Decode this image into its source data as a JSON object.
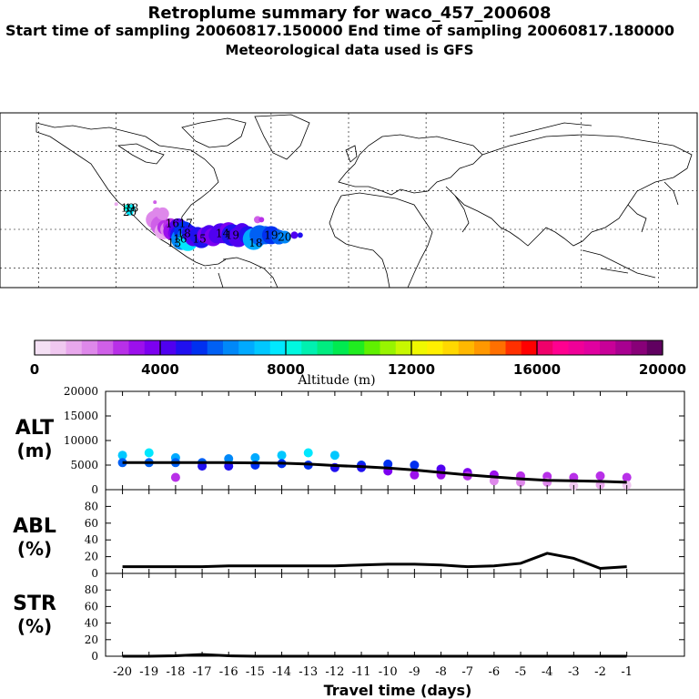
{
  "header": {
    "title": "Retroplume summary for waco_457_200608",
    "sampling_line": "Start time of sampling 20060817.150000     End time of sampling 20060817.180000",
    "met_line": "Meteorological data used is GFS"
  },
  "colorbar": {
    "label": "Altitude (m)",
    "ticks": [
      "0",
      "4000",
      "8000",
      "12000",
      "16000",
      "20000"
    ],
    "colors": [
      "#f4e0f4",
      "#f0c8f0",
      "#e8a8ec",
      "#de88ea",
      "#cf60e8",
      "#b830e8",
      "#9c10ec",
      "#7c00f0",
      "#5000f0",
      "#2010f0",
      "#0030f0",
      "#0060f4",
      "#0088f8",
      "#00aaff",
      "#00c8ff",
      "#00e8ff",
      "#00f8e0",
      "#00f0b0",
      "#00ec80",
      "#00ea50",
      "#20ec20",
      "#60f000",
      "#98f400",
      "#c8f800",
      "#f0f800",
      "#fff000",
      "#ffd800",
      "#ffb800",
      "#ff9800",
      "#ff7000",
      "#ff3000",
      "#ff0000",
      "#f0006a",
      "#ff0090",
      "#f00098",
      "#e000a0",
      "#c80098",
      "#a80090",
      "#880078",
      "#600060"
    ]
  },
  "map_labels": [
    {
      "text": "19",
      "lon": -114,
      "lat": 31
    },
    {
      "text": "18",
      "lon": -112,
      "lat": 31
    },
    {
      "text": "20",
      "lon": -113,
      "lat": 29
    },
    {
      "text": "16",
      "lon": -91,
      "lat": 23
    },
    {
      "text": "17",
      "lon": -84,
      "lat": 23
    },
    {
      "text": "18",
      "lon": -85,
      "lat": 18
    },
    {
      "text": "16",
      "lon": -87,
      "lat": 15
    },
    {
      "text": "15",
      "lon": -77,
      "lat": 15
    },
    {
      "text": "14",
      "lon": -65,
      "lat": 18
    },
    {
      "text": "13",
      "lon": -90,
      "lat": 13
    },
    {
      "text": "19",
      "lon": -60,
      "lat": 17
    },
    {
      "text": "18",
      "lon": -48,
      "lat": 13
    },
    {
      "text": "19",
      "lon": -40,
      "lat": 17
    },
    {
      "text": "20",
      "lon": -33,
      "lat": 16
    }
  ],
  "chart_data": [
    {
      "type": "scatter",
      "panel": "ALT",
      "ylabel": "ALT (m)",
      "ylim": [
        0,
        20000
      ],
      "yticks": [
        "20000",
        "15000",
        "10000",
        "5000",
        "0"
      ],
      "line": {
        "x": [
          -20,
          -18,
          -16,
          -14,
          -13,
          -12,
          -11,
          -10,
          -9,
          -8,
          -7,
          -6,
          -5,
          -4,
          -3,
          -2,
          -1
        ],
        "y": [
          5500,
          5500,
          5500,
          5400,
          5200,
          4900,
          4700,
          4400,
          4000,
          3500,
          3000,
          2600,
          2200,
          1900,
          1800,
          1700,
          1500
        ]
      },
      "points": [
        {
          "x": -20,
          "y": 7000
        },
        {
          "x": -20,
          "y": 5500
        },
        {
          "x": -19,
          "y": 7500
        },
        {
          "x": -19,
          "y": 5500
        },
        {
          "x": -18,
          "y": 6500
        },
        {
          "x": -18,
          "y": 5500
        },
        {
          "x": -18,
          "y": 2500
        },
        {
          "x": -17,
          "y": 5500
        },
        {
          "x": -17,
          "y": 4800
        },
        {
          "x": -16,
          "y": 6300
        },
        {
          "x": -16,
          "y": 4800
        },
        {
          "x": -15,
          "y": 6500
        },
        {
          "x": -15,
          "y": 5000
        },
        {
          "x": -14,
          "y": 7000
        },
        {
          "x": -14,
          "y": 5300
        },
        {
          "x": -13,
          "y": 7500
        },
        {
          "x": -13,
          "y": 5000
        },
        {
          "x": -12,
          "y": 7000
        },
        {
          "x": -12,
          "y": 4500
        },
        {
          "x": -11,
          "y": 5000
        },
        {
          "x": -11,
          "y": 4500
        },
        {
          "x": -10,
          "y": 5200
        },
        {
          "x": -10,
          "y": 3800
        },
        {
          "x": -9,
          "y": 5000
        },
        {
          "x": -9,
          "y": 3000
        },
        {
          "x": -8,
          "y": 4200
        },
        {
          "x": -8,
          "y": 3000
        },
        {
          "x": -7,
          "y": 3500
        },
        {
          "x": -7,
          "y": 2800
        },
        {
          "x": -6,
          "y": 3000
        },
        {
          "x": -6,
          "y": 1800
        },
        {
          "x": -5,
          "y": 2800
        },
        {
          "x": -5,
          "y": 1500
        },
        {
          "x": -4,
          "y": 2700
        },
        {
          "x": -4,
          "y": 1500
        },
        {
          "x": -3,
          "y": 2500
        },
        {
          "x": -3,
          "y": 800
        },
        {
          "x": -2,
          "y": 2800
        },
        {
          "x": -2,
          "y": 1000
        },
        {
          "x": -1,
          "y": 2500
        },
        {
          "x": -1,
          "y": 900
        }
      ]
    },
    {
      "type": "line",
      "panel": "ABL",
      "ylabel": "ABL (%)",
      "ylim": [
        0,
        100
      ],
      "yticks": [
        "80",
        "60",
        "40",
        "20",
        "0"
      ],
      "x": [
        -20,
        -19,
        -18,
        -17,
        -16,
        -15,
        -14,
        -13,
        -12,
        -11,
        -10,
        -9,
        -8,
        -7,
        -6,
        -5,
        -4,
        -3,
        -2,
        -1
      ],
      "y": [
        8,
        8,
        8,
        8,
        9,
        9,
        9,
        9,
        9,
        10,
        11,
        11,
        10,
        8,
        9,
        12,
        24,
        18,
        6,
        8
      ]
    },
    {
      "type": "line",
      "panel": "STR",
      "ylabel": "STR (%)",
      "ylim": [
        0,
        100
      ],
      "yticks": [
        "80",
        "60",
        "40",
        "20",
        "0"
      ],
      "x": [
        -20,
        -19,
        -18,
        -17,
        -16,
        -15,
        -14,
        -13,
        -12,
        -11,
        -10,
        -9,
        -8,
        -7,
        -6,
        -5,
        -4,
        -3,
        -2,
        -1
      ],
      "y": [
        0,
        0,
        0.5,
        2,
        0.5,
        0,
        0,
        0,
        0,
        0,
        0,
        0,
        0,
        0,
        0,
        0,
        0,
        0,
        0,
        0
      ]
    }
  ],
  "panel_labels": {
    "alt_1": "ALT",
    "alt_2": "(m)",
    "abl_1": "ABL",
    "abl_2": "(%)",
    "str_1": "STR",
    "str_2": "(%)"
  },
  "xaxis": {
    "label": "Travel time (days)",
    "ticks": [
      "-20",
      "-19",
      "-18",
      "-17",
      "-16",
      "-15",
      "-14",
      "-13",
      "-12",
      "-11",
      "-10",
      "-9",
      "-8",
      "-7",
      "-6",
      "-5",
      "-4",
      "-3",
      "-2",
      "-1"
    ]
  }
}
